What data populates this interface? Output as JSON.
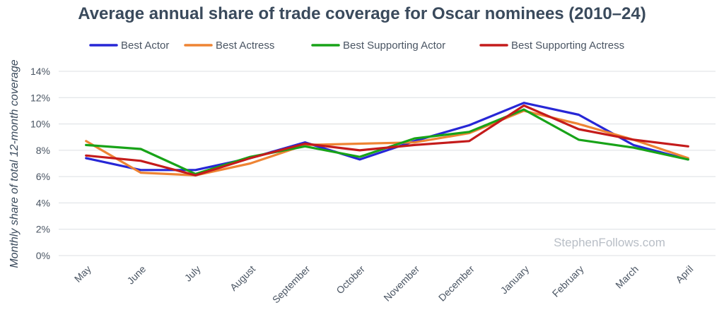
{
  "chart_data": {
    "type": "line",
    "title": "Average annual share of trade coverage for Oscar nominees (2010–24)",
    "xlabel": "",
    "ylabel": "Monthly share of total 12-month coverage",
    "categories": [
      "May",
      "June",
      "July",
      "August",
      "September",
      "October",
      "November",
      "December",
      "January",
      "February",
      "March",
      "April"
    ],
    "ylim": [
      0,
      14
    ],
    "yticks": [
      0,
      2,
      4,
      6,
      8,
      10,
      12,
      14
    ],
    "ytick_suffix": "%",
    "grid": true,
    "legend_position": "top",
    "series": [
      {
        "name": "Best Actor",
        "color": "#2727d6",
        "values": [
          7.4,
          6.5,
          6.5,
          7.4,
          8.6,
          7.3,
          8.7,
          9.9,
          11.6,
          10.7,
          8.4,
          7.3
        ]
      },
      {
        "name": "Best Actress",
        "color": "#ee8434",
        "values": [
          8.7,
          6.3,
          6.1,
          7.0,
          8.4,
          8.5,
          8.6,
          9.3,
          11.0,
          10.0,
          8.8,
          7.4
        ]
      },
      {
        "name": "Best Supporting Actor",
        "color": "#18a318",
        "values": [
          8.4,
          8.1,
          6.2,
          7.5,
          8.3,
          7.5,
          8.9,
          9.4,
          11.1,
          8.8,
          8.2,
          7.3
        ]
      },
      {
        "name": "Best Supporting Actress",
        "color": "#c41b1b",
        "values": [
          7.6,
          7.2,
          6.1,
          7.4,
          8.5,
          8.0,
          8.4,
          8.7,
          11.4,
          9.6,
          8.8,
          8.3
        ]
      }
    ]
  },
  "watermark": "StephenFollows.com"
}
